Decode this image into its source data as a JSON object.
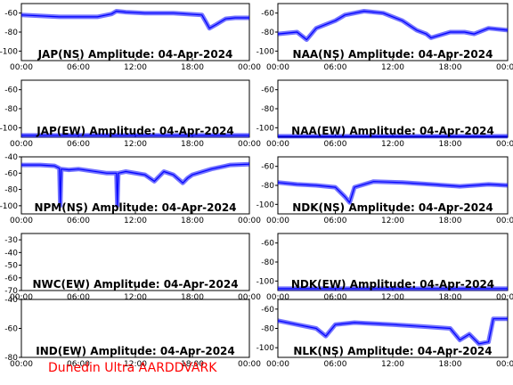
{
  "footer_text": "Dunedin Ultra AARDDVARK",
  "trace_color": "#0000ff",
  "footer_color": "#ff0000",
  "chart_data": [
    {
      "type": "line",
      "title": "JAP(NS) Amplitude: 04-Apr-2024",
      "xticks": [
        "00:00",
        "06:00",
        "12:00",
        "18:00",
        "00:00"
      ],
      "ylim": [
        -110,
        -50
      ],
      "yticks": [
        -60,
        -80,
        -100
      ],
      "x_hours": [
        0,
        4,
        8,
        9.5,
        10,
        11,
        13,
        16,
        19,
        19.8,
        20.5,
        21.5,
        22.5,
        24
      ],
      "y": [
        -62,
        -64,
        -64,
        -61,
        -58,
        -59,
        -60,
        -60,
        -62,
        -76,
        -72,
        -66,
        -65,
        -65
      ]
    },
    {
      "type": "line",
      "title": "NAA(NS) Amplitude: 04-Apr-2024",
      "xticks": [
        "00:00",
        "06:00",
        "12:00",
        "18:00",
        "00:00"
      ],
      "ylim": [
        -110,
        -50
      ],
      "yticks": [
        -60,
        -80,
        -100
      ],
      "x_hours": [
        0,
        2,
        3,
        4,
        6,
        7,
        9,
        11,
        13,
        14.5,
        15.5,
        16,
        18,
        19.5,
        20.5,
        22,
        24
      ],
      "y": [
        -82,
        -80,
        -88,
        -76,
        -68,
        -62,
        -58,
        -60,
        -68,
        -78,
        -82,
        -86,
        -80,
        -80,
        -82,
        -76,
        -78
      ]
    },
    {
      "type": "line",
      "title": "JAP(EW) Amplitude: 04-Apr-2024",
      "xticks": [
        "00:00",
        "06:00",
        "12:00",
        "18:00",
        "00:00"
      ],
      "ylim": [
        -110,
        -50
      ],
      "yticks": [
        -60,
        -80,
        -100
      ],
      "x_hours": [
        0,
        6,
        12,
        18,
        24
      ],
      "y": [
        -108,
        -108,
        -108,
        -108,
        -108
      ]
    },
    {
      "type": "line",
      "title": "NAA(EW) Amplitude: 04-Apr-2024",
      "xticks": [
        "00:00",
        "06:00",
        "12:00",
        "18:00",
        "00:00"
      ],
      "ylim": [
        -110,
        -50
      ],
      "yticks": [
        -60,
        -80,
        -100
      ],
      "x_hours": [
        0,
        6,
        12,
        18,
        24
      ],
      "y": [
        -109,
        -109,
        -109,
        -109,
        -109
      ]
    },
    {
      "type": "line",
      "title": "NPM(NS) Amplitude: 04-Apr-2024",
      "xticks": [
        "00:00",
        "06:00",
        "12:00",
        "18:00",
        "00:00"
      ],
      "ylim": [
        -110,
        -40
      ],
      "yticks": [
        -40,
        -60,
        -80,
        -100
      ],
      "x_hours": [
        0,
        2,
        3.5,
        4,
        4.1,
        4.2,
        5,
        6,
        9,
        10,
        10.1,
        10.2,
        11,
        13,
        14,
        15,
        16,
        17,
        17.5,
        18,
        20,
        22,
        24
      ],
      "y": [
        -50,
        -50,
        -51,
        -54,
        -100,
        -55,
        -56,
        -55,
        -60,
        -60,
        -100,
        -60,
        -58,
        -62,
        -70,
        -58,
        -62,
        -72,
        -66,
        -62,
        -55,
        -50,
        -49
      ]
    },
    {
      "type": "line",
      "title": "NDK(NS) Amplitude: 04-Apr-2024",
      "xticks": [
        "00:00",
        "06:00",
        "12:00",
        "18:00",
        "00:00"
      ],
      "ylim": [
        -110,
        -50
      ],
      "yticks": [
        -60,
        -80,
        -100
      ],
      "x_hours": [
        0,
        2,
        4,
        6,
        7,
        7.5,
        8,
        10,
        13,
        16,
        19,
        22,
        24
      ],
      "y": [
        -77,
        -79,
        -80,
        -82,
        -92,
        -98,
        -82,
        -76,
        -77,
        -79,
        -81,
        -79,
        -80
      ]
    },
    {
      "type": "line",
      "title": "NWC(EW) Amplitude: 04-Apr-2024",
      "xticks": [
        "00:00",
        "06:00",
        "12:00",
        "18:00",
        "00:00"
      ],
      "ylim": [
        -70,
        -25
      ],
      "yticks": [
        -30,
        -40,
        -50,
        -60,
        -70
      ],
      "x_hours": [],
      "y": []
    },
    {
      "type": "line",
      "title": "NDK(EW) Amplitude: 04-Apr-2024",
      "xticks": [
        "00:00",
        "06:00",
        "12:00",
        "18:00",
        "00:00"
      ],
      "ylim": [
        -110,
        -50
      ],
      "yticks": [
        -60,
        -80,
        -100
      ],
      "x_hours": [
        0,
        6,
        12,
        18,
        24
      ],
      "y": [
        -108,
        -108,
        -108,
        -108,
        -108
      ]
    },
    {
      "type": "line",
      "title": "IND(EW) Amplitude: 04-Apr-2024",
      "xticks": [
        "00:00",
        "06:00",
        "12:00",
        "18:00",
        "00:00"
      ],
      "ylim": [
        -80,
        -40
      ],
      "yticks": [
        -40,
        -60,
        -80
      ],
      "x_hours": [],
      "y": []
    },
    {
      "type": "line",
      "title": "NLK(NS) Amplitude: 04-Apr-2024",
      "xticks": [
        "00:00",
        "06:00",
        "12:00",
        "18:00",
        "00:00"
      ],
      "ylim": [
        -110,
        -50
      ],
      "yticks": [
        -60,
        -80,
        -100
      ],
      "x_hours": [
        0,
        2,
        4,
        5,
        6,
        8,
        12,
        15,
        18,
        19,
        20,
        21,
        22,
        22.5,
        23,
        24
      ],
      "y": [
        -72,
        -76,
        -80,
        -88,
        -76,
        -74,
        -76,
        -78,
        -80,
        -92,
        -86,
        -96,
        -94,
        -70,
        -70,
        -70
      ]
    }
  ]
}
